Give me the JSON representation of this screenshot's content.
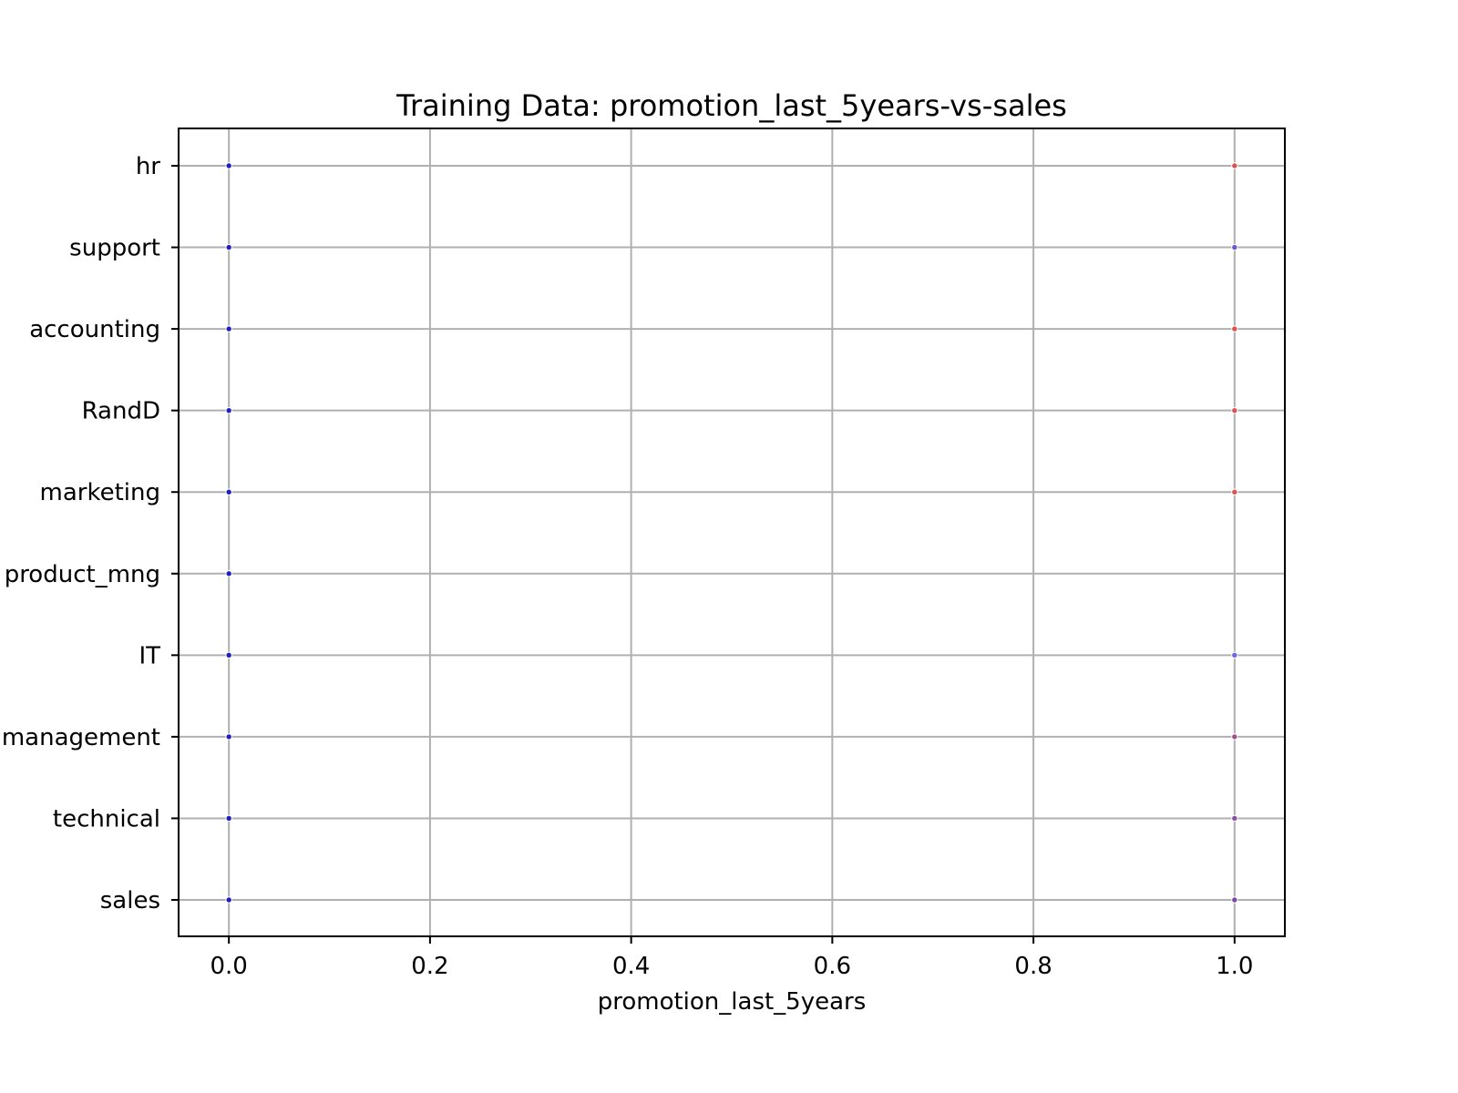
{
  "chart_data": {
    "type": "scatter",
    "title": "Training Data: promotion_last_5years-vs-sales",
    "xlabel": "promotion_last_5years",
    "ylabel": "",
    "xlim": [
      -0.05,
      1.05
    ],
    "x_ticks": [
      0.0,
      0.2,
      0.4,
      0.6,
      0.8,
      1.0
    ],
    "x_tick_labels": [
      "0.0",
      "0.2",
      "0.4",
      "0.6",
      "0.8",
      "1.0"
    ],
    "categories": [
      "sales",
      "technical",
      "management",
      "IT",
      "product_mng",
      "marketing",
      "RandD",
      "accounting",
      "support",
      "hr"
    ],
    "grid": true,
    "legend": "none",
    "points": [
      {
        "x": 0,
        "y": "hr",
        "color": "#1f1fbf"
      },
      {
        "x": 0,
        "y": "support",
        "color": "#1f1fbf"
      },
      {
        "x": 0,
        "y": "accounting",
        "color": "#1f1fbf"
      },
      {
        "x": 0,
        "y": "RandD",
        "color": "#1f1fbf"
      },
      {
        "x": 0,
        "y": "marketing",
        "color": "#1f1fbf"
      },
      {
        "x": 0,
        "y": "product_mng",
        "color": "#1f1fbf"
      },
      {
        "x": 0,
        "y": "IT",
        "color": "#1f1fbf"
      },
      {
        "x": 0,
        "y": "management",
        "color": "#1f1fbf"
      },
      {
        "x": 0,
        "y": "technical",
        "color": "#1f1fbf"
      },
      {
        "x": 0,
        "y": "sales",
        "color": "#1f1fbf"
      },
      {
        "x": 1,
        "y": "hr",
        "color": "#d9534f"
      },
      {
        "x": 1,
        "y": "support",
        "color": "#6a5acd"
      },
      {
        "x": 1,
        "y": "accounting",
        "color": "#d9534f"
      },
      {
        "x": 1,
        "y": "RandD",
        "color": "#d9534f"
      },
      {
        "x": 1,
        "y": "marketing",
        "color": "#d9534f"
      },
      {
        "x": 1,
        "y": "IT",
        "color": "#6a6adf"
      },
      {
        "x": 1,
        "y": "management",
        "color": "#9b4f8f"
      },
      {
        "x": 1,
        "y": "technical",
        "color": "#8a4fa8"
      },
      {
        "x": 1,
        "y": "sales",
        "color": "#7a4aa8"
      }
    ]
  }
}
